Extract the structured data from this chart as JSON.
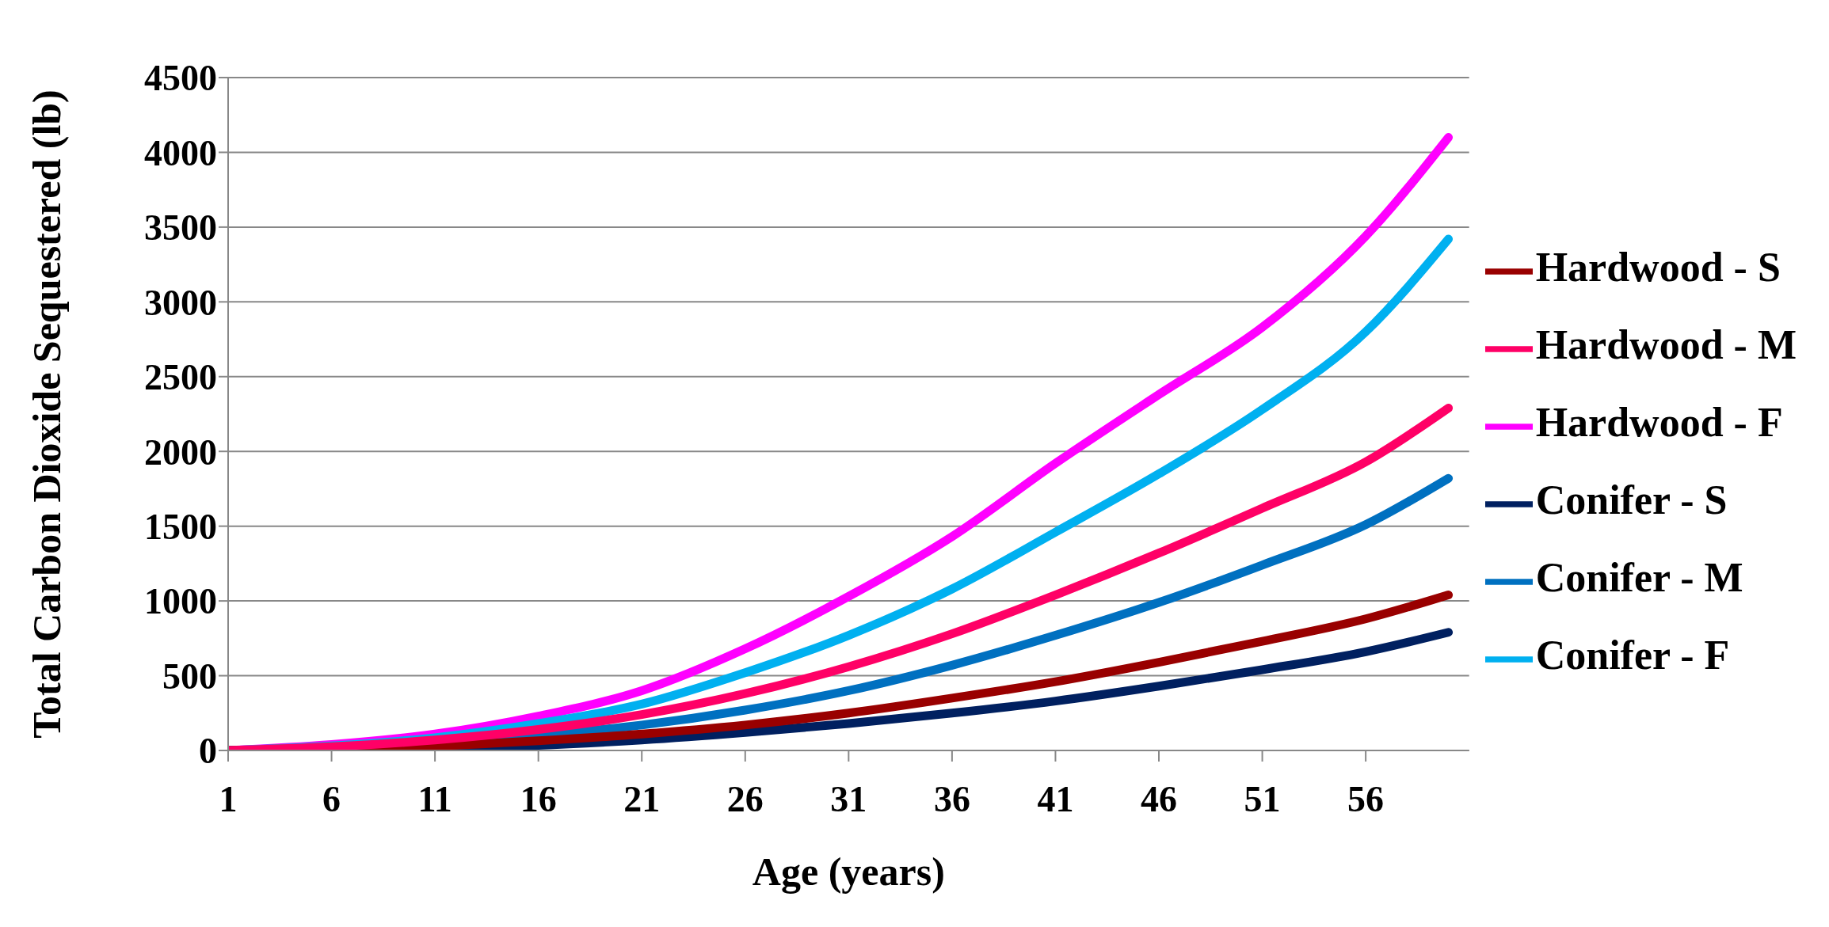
{
  "chart_data": {
    "type": "line",
    "xlabel": "Age (years)",
    "ylabel": "Total Carbon Dioxide Sequestered (lb)",
    "x": [
      1,
      6,
      11,
      16,
      21,
      26,
      31,
      36,
      41,
      46,
      51,
      56,
      60
    ],
    "xlim": [
      1,
      61
    ],
    "xticks": [
      1,
      6,
      11,
      16,
      21,
      26,
      31,
      36,
      41,
      46,
      51,
      56
    ],
    "ylim": [
      0,
      4500
    ],
    "yticks": [
      0,
      500,
      1000,
      1500,
      2000,
      2500,
      3000,
      3500,
      4000,
      4500
    ],
    "grid": "y",
    "legend": "right",
    "marker": "none",
    "line_style": "solid",
    "series": [
      {
        "name": "Hardwood - S",
        "color": "#990000",
        "values": [
          0,
          10,
          30,
          65,
          110,
          170,
          250,
          350,
          460,
          590,
          730,
          880,
          1040
        ]
      },
      {
        "name": "Hardwood - M",
        "color": "#ff0066",
        "values": [
          0,
          25,
          70,
          140,
          240,
          380,
          560,
          780,
          1040,
          1320,
          1620,
          1930,
          2290
        ]
      },
      {
        "name": "Hardwood - F",
        "color": "#ff00ff",
        "values": [
          0,
          40,
          110,
          230,
          400,
          680,
          1030,
          1430,
          1920,
          2380,
          2830,
          3440,
          4100
        ]
      },
      {
        "name": "Conifer - S",
        "color": "#002060",
        "values": [
          0,
          null,
          null,
          35,
          70,
          120,
          180,
          250,
          330,
          430,
          540,
          660,
          790
        ]
      },
      {
        "name": "Conifer - M",
        "color": "#0070c0",
        "values": [
          0,
          15,
          null,
          100,
          170,
          270,
          400,
          570,
          770,
          990,
          1240,
          1510,
          1820
        ]
      },
      {
        "name": "Conifer - F",
        "color": "#00b0f0",
        "values": [
          0,
          30,
          85,
          180,
          310,
          520,
          770,
          1080,
          1460,
          1850,
          2280,
          2800,
          3420
        ]
      }
    ]
  }
}
